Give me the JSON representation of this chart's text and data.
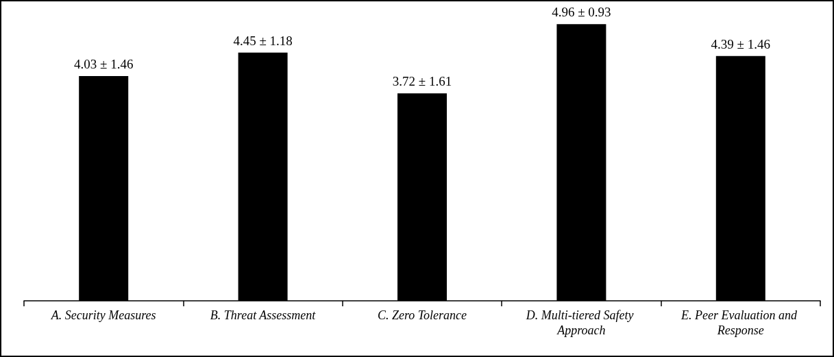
{
  "chart_data": {
    "type": "bar",
    "categories": [
      "A. Security Measures",
      "B. Threat Assessment",
      "C. Zero Tolerance",
      "D. Multi-tiered Safety Approach",
      "E. Peer Evaluation and Response"
    ],
    "values": [
      4.03,
      4.45,
      3.72,
      4.96,
      4.39
    ],
    "value_labels": [
      "4.03 ± 1.46",
      "4.45 ± 1.18",
      "3.72 ± 1.61",
      "4.96 ± 0.93",
      "4.39 ± 1.46"
    ],
    "color": "#000000",
    "tick_labels": "x",
    "grid": false
  }
}
